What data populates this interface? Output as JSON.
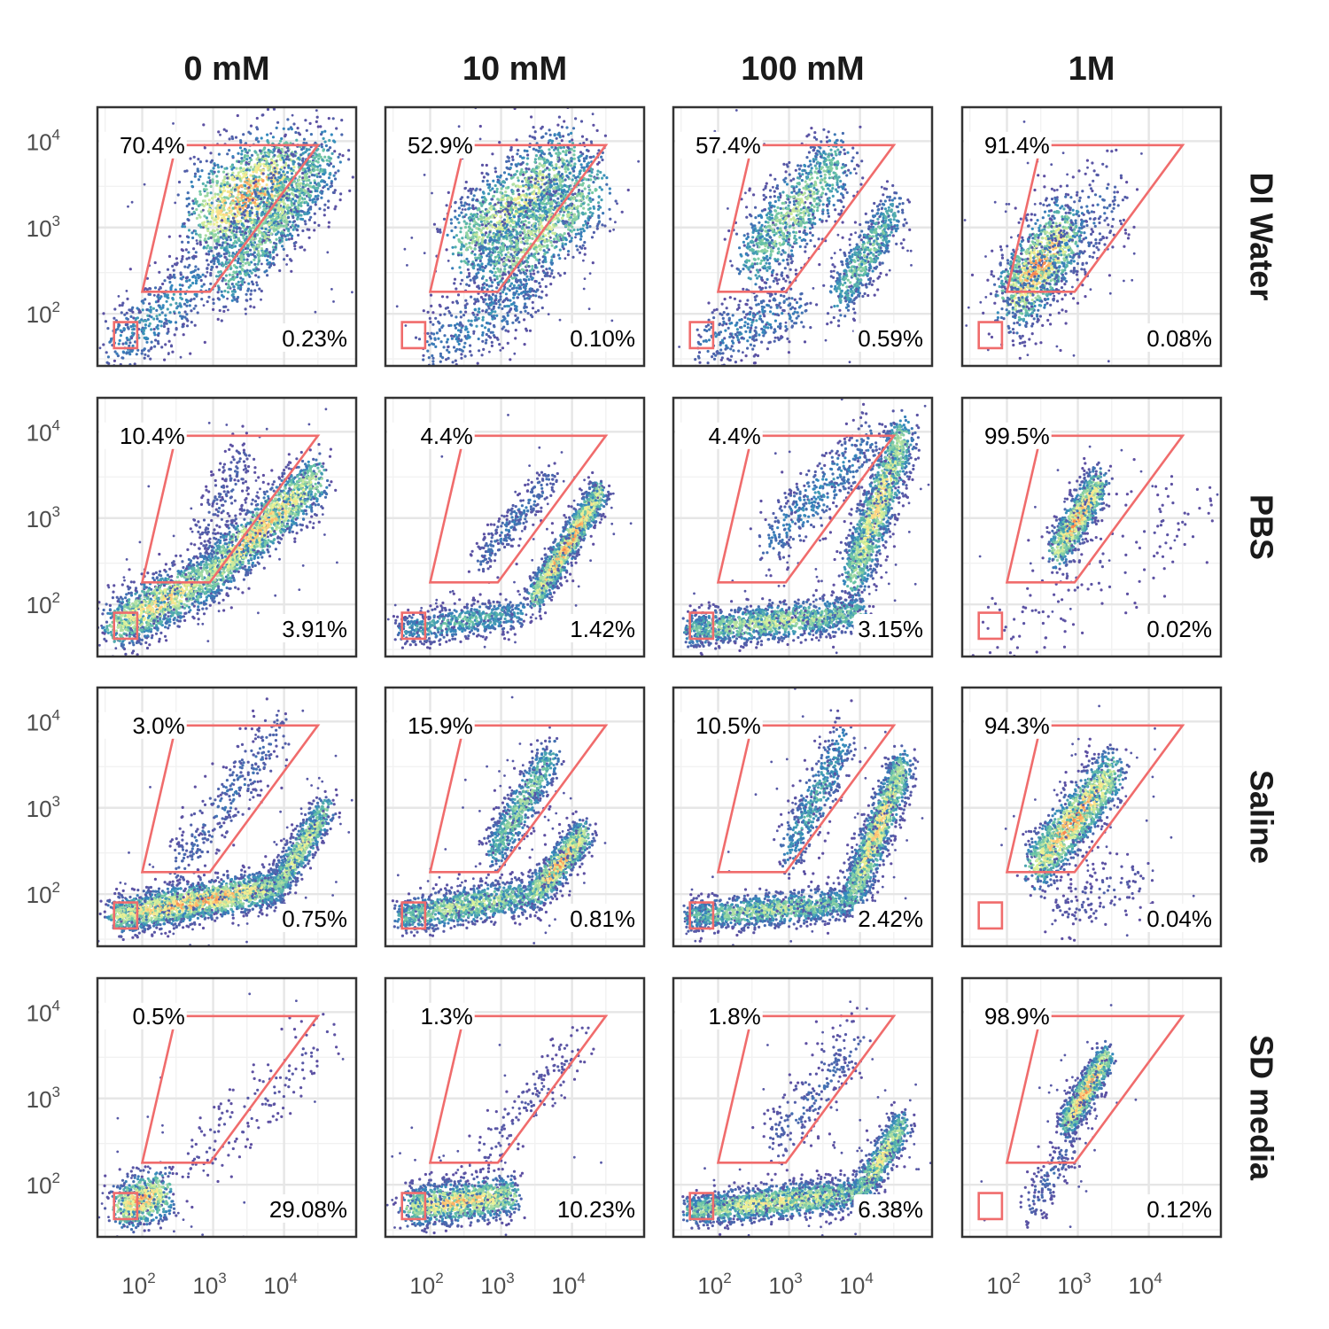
{
  "chart_data": {
    "type": "scatter",
    "subtype": "faceted hexbin density (flow cytometry, log-log)",
    "columns": [
      "0 mM",
      "10 mM",
      "100 mM",
      "1M"
    ],
    "rows": [
      "DI Water",
      "PBS",
      "Saline",
      "SD media"
    ],
    "axis_scale": "log10",
    "xlim": [
      27,
      90000
    ],
    "ylim": [
      28,
      22000
    ],
    "x_ticks": [
      100,
      1000,
      10000
    ],
    "y_ticks": [
      100,
      1000,
      10000
    ],
    "tick_labels": [
      {
        "base": "10",
        "exp": "2"
      },
      {
        "base": "10",
        "exp": "3"
      },
      {
        "base": "10",
        "exp": "4"
      }
    ],
    "gates": {
      "upper_polygon": [
        [
          100,
          180
        ],
        [
          900,
          180
        ],
        [
          30000,
          9000
        ],
        [
          300,
          9000
        ]
      ],
      "lower_square": [
        [
          40,
          40
        ],
        [
          85,
          40
        ],
        [
          85,
          80
        ],
        [
          40,
          80
        ]
      ]
    },
    "colors": {
      "gate": "#f06c6c",
      "density_palette": [
        "#5e4fa2",
        "#3288bd",
        "#66c2a5",
        "#abdda4",
        "#e6f598",
        "#fee08b",
        "#fdae61",
        "#f46d43",
        "#d53e4f"
      ]
    },
    "panels": [
      [
        {
          "upper_pct": "70.4%",
          "lower_pct": "0.23%"
        },
        {
          "upper_pct": "52.9%",
          "lower_pct": "0.10%"
        },
        {
          "upper_pct": "57.4%",
          "lower_pct": "0.59%"
        },
        {
          "upper_pct": "91.4%",
          "lower_pct": "0.08%"
        }
      ],
      [
        {
          "upper_pct": "10.4%",
          "lower_pct": "3.91%"
        },
        {
          "upper_pct": "4.4%",
          "lower_pct": "1.42%"
        },
        {
          "upper_pct": "4.4%",
          "lower_pct": "3.15%"
        },
        {
          "upper_pct": "99.5%",
          "lower_pct": "0.02%"
        }
      ],
      [
        {
          "upper_pct": "3.0%",
          "lower_pct": "0.75%"
        },
        {
          "upper_pct": "15.9%",
          "lower_pct": "0.81%"
        },
        {
          "upper_pct": "10.5%",
          "lower_pct": "2.42%"
        },
        {
          "upper_pct": "94.3%",
          "lower_pct": "0.04%"
        }
      ],
      [
        {
          "upper_pct": "0.5%",
          "lower_pct": "29.08%"
        },
        {
          "upper_pct": "1.3%",
          "lower_pct": "10.23%"
        },
        {
          "upper_pct": "1.8%",
          "lower_pct": "6.38%"
        },
        {
          "upper_pct": "98.9%",
          "lower_pct": "0.12%"
        }
      ]
    ],
    "populations": [
      [
        [
          {
            "shape": "line",
            "x": [
              800,
              14000
            ],
            "y": [
              1300,
              4500
            ],
            "lw": 0.6,
            "density": 1.0
          },
          {
            "shape": "line",
            "x": [
              1500,
              40000
            ],
            "y": [
              250,
              7000
            ],
            "lw": 0.45,
            "density": 0.55
          },
          {
            "shape": "line",
            "x": [
              40,
              700
            ],
            "y": [
              40,
              250
            ],
            "lw": 0.4,
            "density": 0.25
          }
        ],
        [
          {
            "shape": "line",
            "x": [
              300,
              9000
            ],
            "y": [
              600,
              6000
            ],
            "lw": 0.5,
            "density": 0.7
          },
          {
            "shape": "line",
            "x": [
              800,
              20000
            ],
            "y": [
              300,
              3000
            ],
            "lw": 0.5,
            "density": 0.6
          },
          {
            "shape": "line",
            "x": [
              100,
              3000
            ],
            "y": [
              40,
              200
            ],
            "lw": 0.4,
            "density": 0.2
          }
        ],
        [
          {
            "shape": "line",
            "x": [
              300,
              5000
            ],
            "y": [
              400,
              6000
            ],
            "lw": 0.45,
            "density": 0.55
          },
          {
            "shape": "line",
            "x": [
              5000,
              30000
            ],
            "y": [
              150,
              1500
            ],
            "lw": 0.3,
            "density": 0.45
          },
          {
            "shape": "line",
            "x": [
              60,
              1500
            ],
            "y": [
              45,
              120
            ],
            "lw": 0.35,
            "density": 0.2
          }
        ],
        [
          {
            "shape": "line",
            "x": [
              120,
              700
            ],
            "y": [
              150,
              900
            ],
            "lw": 0.45,
            "density": 1.0
          },
          {
            "shape": "line",
            "x": [
              100,
              3000
            ],
            "y": [
              100,
              2500
            ],
            "lw": 0.5,
            "density": 0.15
          }
        ]
      ],
      [
        [
          {
            "shape": "line",
            "x": [
              40,
              800
            ],
            "y": [
              55,
              200
            ],
            "lw": 0.3,
            "density": 0.85
          },
          {
            "shape": "line",
            "x": [
              800,
              30000
            ],
            "y": [
              200,
              3000
            ],
            "lw": 0.3,
            "density": 0.9
          },
          {
            "shape": "line",
            "x": [
              700,
              3000
            ],
            "y": [
              600,
              6000
            ],
            "lw": 0.3,
            "density": 0.08
          }
        ],
        [
          {
            "shape": "line",
            "x": [
              40,
              2000
            ],
            "y": [
              50,
              80
            ],
            "lw": 0.18,
            "density": 0.35
          },
          {
            "shape": "line",
            "x": [
              3000,
              25000
            ],
            "y": [
              120,
              2000
            ],
            "lw": 0.18,
            "density": 1.0
          },
          {
            "shape": "line",
            "x": [
              500,
              5000
            ],
            "y": [
              300,
              3000
            ],
            "lw": 0.2,
            "density": 0.15
          }
        ],
        [
          {
            "shape": "line",
            "x": [
              40,
              10000
            ],
            "y": [
              50,
              80
            ],
            "lw": 0.2,
            "density": 0.6
          },
          {
            "shape": "line",
            "x": [
              8000,
              40000
            ],
            "y": [
              200,
              9000
            ],
            "lw": 0.3,
            "density": 0.8
          },
          {
            "shape": "line",
            "x": [
              500,
              15000
            ],
            "y": [
              500,
              8000
            ],
            "lw": 0.35,
            "density": 0.2
          }
        ],
        [
          {
            "shape": "line",
            "x": [
              500,
              2000
            ],
            "y": [
              400,
              2500
            ],
            "lw": 0.22,
            "density": 1.0
          },
          {
            "shape": "line",
            "x": [
              60,
              40000
            ],
            "y": [
              50,
              1200
            ],
            "lw": 0.6,
            "density": 0.02
          }
        ]
      ],
      [
        [
          {
            "shape": "line",
            "x": [
              40,
              8000
            ],
            "y": [
              55,
              120
            ],
            "lw": 0.2,
            "density": 1.0
          },
          {
            "shape": "line",
            "x": [
              8000,
              40000
            ],
            "y": [
              120,
              1000
            ],
            "lw": 0.2,
            "density": 0.7
          },
          {
            "shape": "line",
            "x": [
              300,
              10000
            ],
            "y": [
              200,
              9000
            ],
            "lw": 0.35,
            "density": 0.12
          }
        ],
        [
          {
            "shape": "line",
            "x": [
              40,
              3000
            ],
            "y": [
              55,
              100
            ],
            "lw": 0.2,
            "density": 0.6
          },
          {
            "shape": "line",
            "x": [
              3000,
              15000
            ],
            "y": [
              100,
              500
            ],
            "lw": 0.2,
            "density": 1.0
          },
          {
            "shape": "line",
            "x": [
              800,
              5000
            ],
            "y": [
              300,
              4000
            ],
            "lw": 0.25,
            "density": 0.5
          }
        ],
        [
          {
            "shape": "line",
            "x": [
              40,
              8000
            ],
            "y": [
              55,
              80
            ],
            "lw": 0.18,
            "density": 0.55
          },
          {
            "shape": "line",
            "x": [
              8000,
              40000
            ],
            "y": [
              100,
              3000
            ],
            "lw": 0.25,
            "density": 0.85
          },
          {
            "shape": "line",
            "x": [
              1000,
              6000
            ],
            "y": [
              300,
              6000
            ],
            "lw": 0.3,
            "density": 0.3
          }
        ],
        [
          {
            "shape": "line",
            "x": [
              250,
              3000
            ],
            "y": [
              200,
              2500
            ],
            "lw": 0.3,
            "density": 1.0
          },
          {
            "shape": "line",
            "x": [
              500,
              8000
            ],
            "y": [
              60,
              150
            ],
            "lw": 0.35,
            "density": 0.05
          }
        ]
      ],
      [
        [
          {
            "shape": "line",
            "x": [
              50,
              200
            ],
            "y": [
              55,
              80
            ],
            "lw": 0.28,
            "density": 1.0
          },
          {
            "shape": "line",
            "x": [
              400,
              40000
            ],
            "y": [
              150,
              5000
            ],
            "lw": 0.4,
            "density": 0.03
          }
        ],
        [
          {
            "shape": "line",
            "x": [
              50,
              1500
            ],
            "y": [
              55,
              75
            ],
            "lw": 0.22,
            "density": 0.9
          },
          {
            "shape": "line",
            "x": [
              500,
              15000
            ],
            "y": [
              200,
              5000
            ],
            "lw": 0.3,
            "density": 0.04
          }
        ],
        [
          {
            "shape": "line",
            "x": [
              40,
              10000
            ],
            "y": [
              50,
              80
            ],
            "lw": 0.18,
            "density": 0.75
          },
          {
            "shape": "line",
            "x": [
              10000,
              40000
            ],
            "y": [
              80,
              500
            ],
            "lw": 0.2,
            "density": 0.75
          },
          {
            "shape": "line",
            "x": [
              600,
              10000
            ],
            "y": [
              300,
              5000
            ],
            "lw": 0.35,
            "density": 0.1
          }
        ],
        [
          {
            "shape": "line",
            "x": [
              700,
              2500
            ],
            "y": [
              500,
              3000
            ],
            "lw": 0.18,
            "density": 1.0
          },
          {
            "shape": "line",
            "x": [
              200,
              800
            ],
            "y": [
              50,
              300
            ],
            "lw": 0.25,
            "density": 0.1
          }
        ]
      ]
    ]
  }
}
